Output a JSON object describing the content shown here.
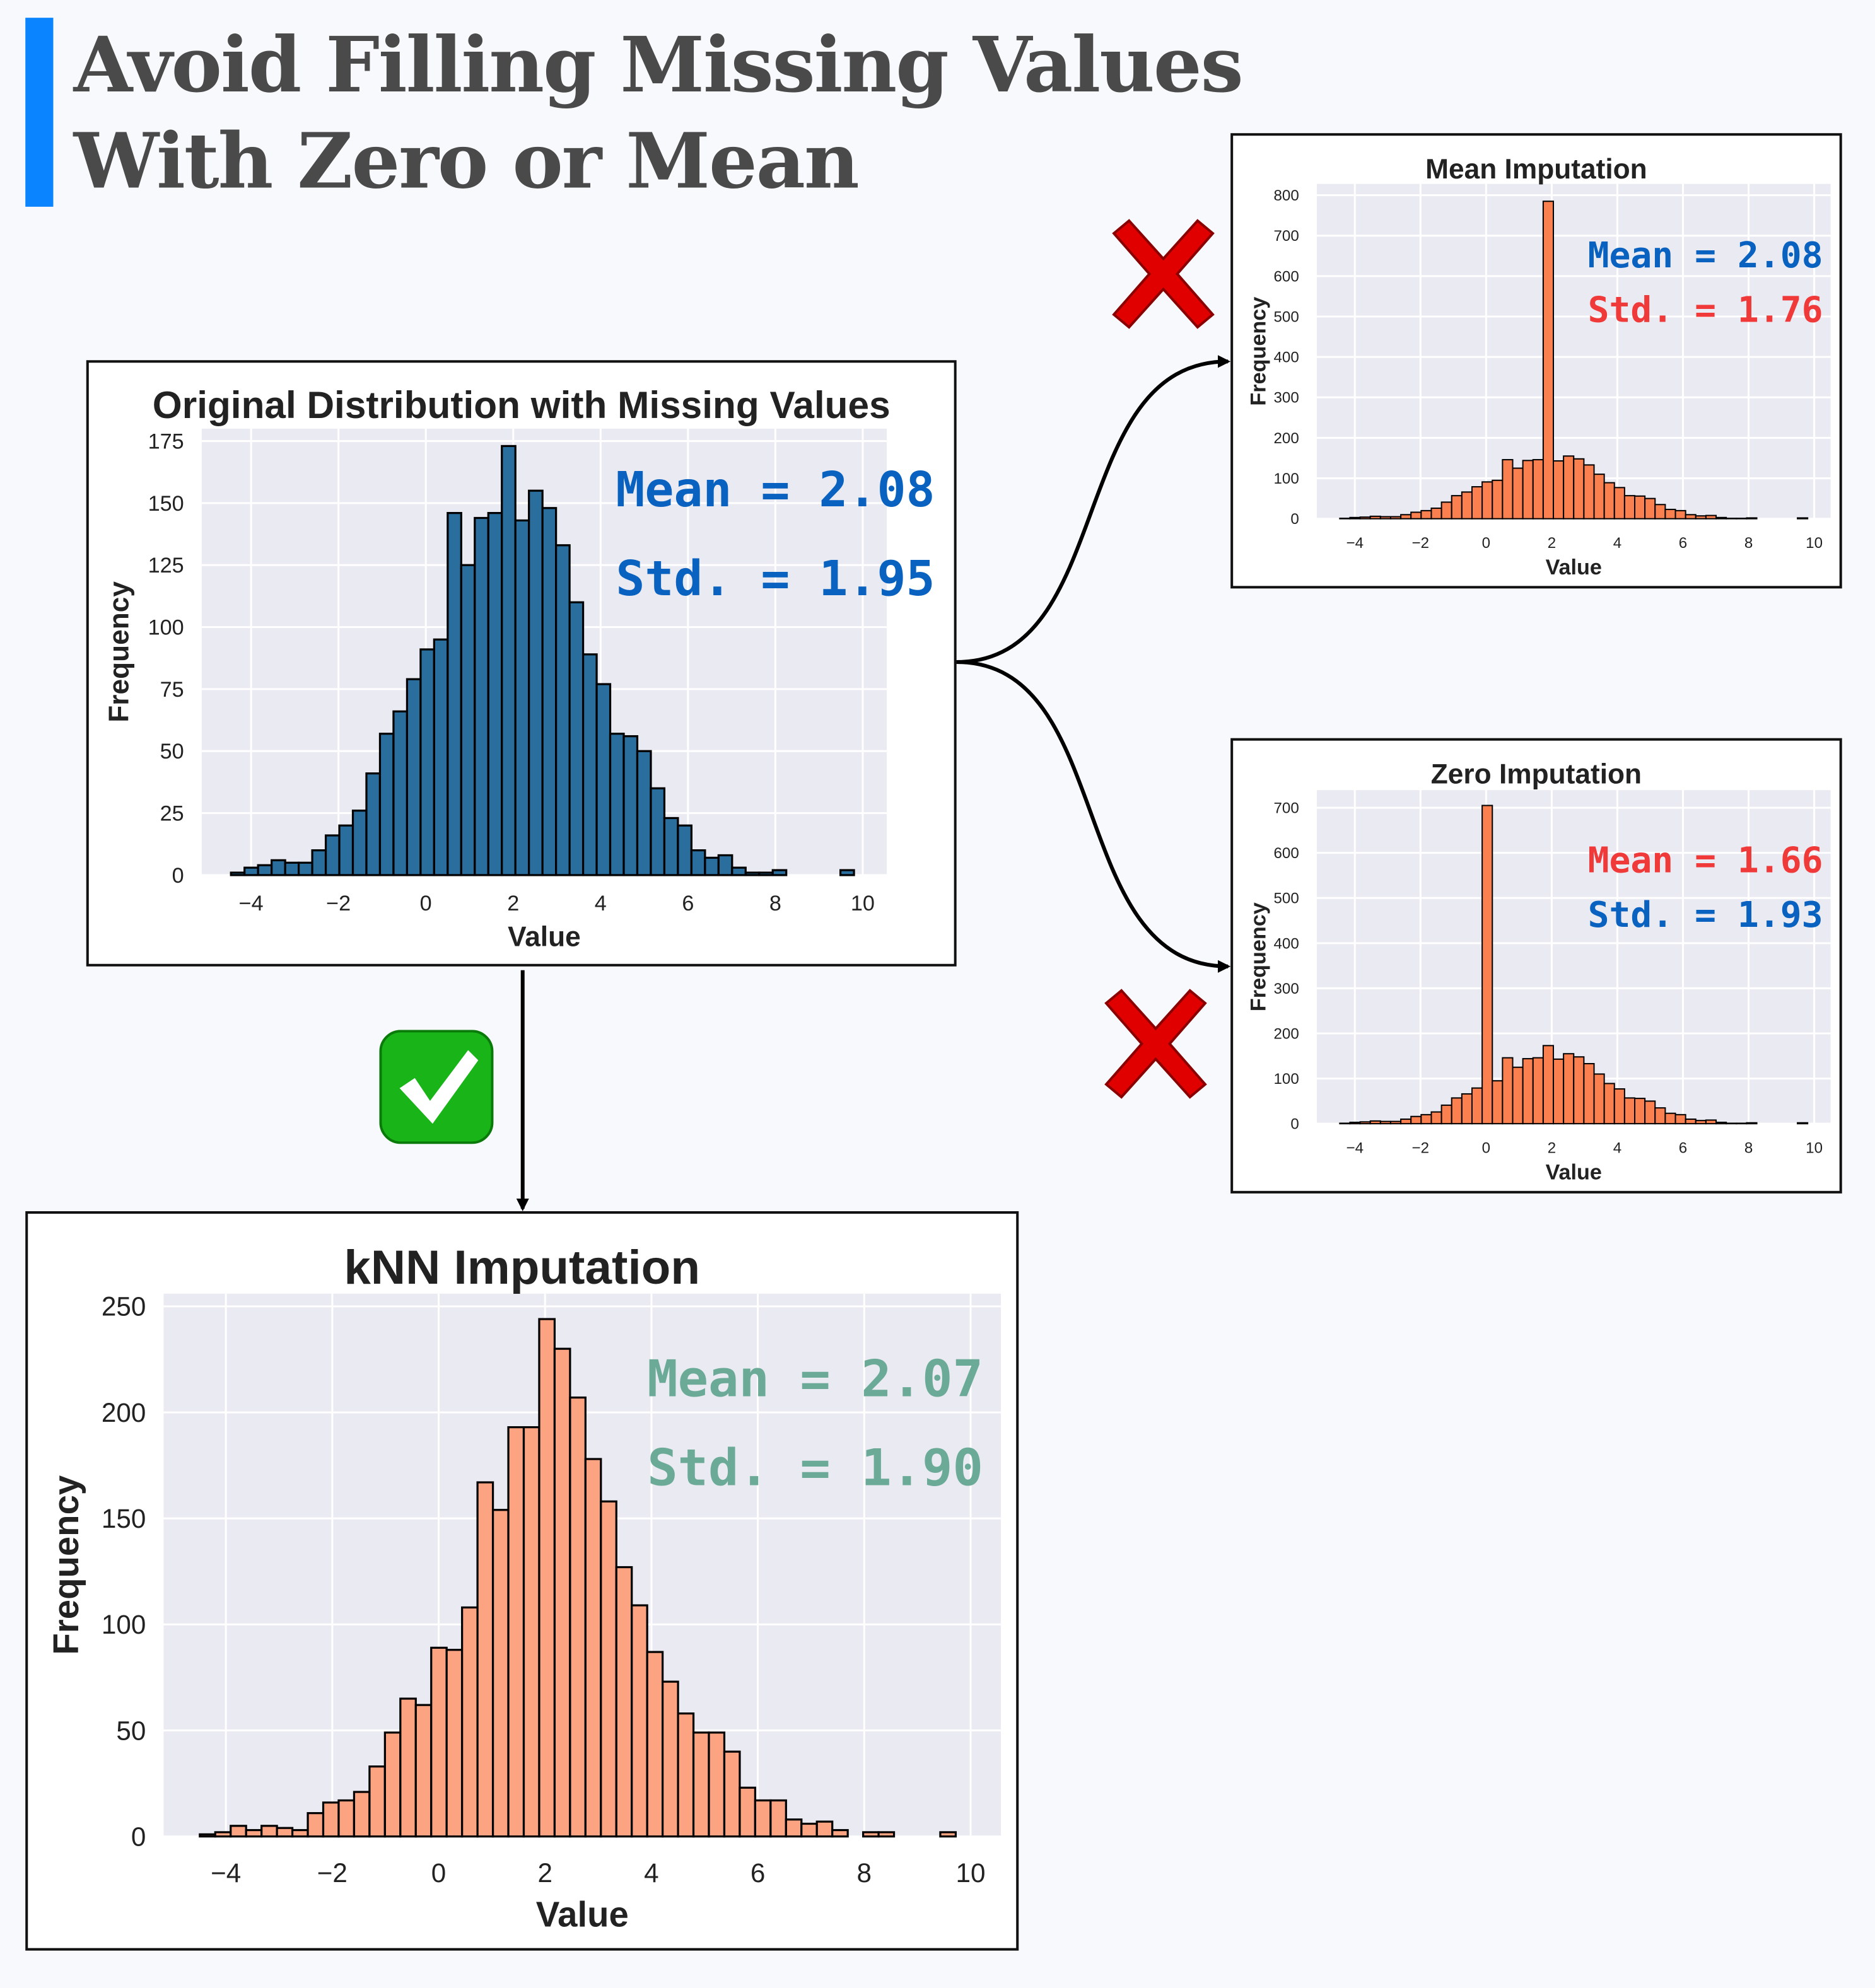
{
  "header": {
    "title_line1": "Avoid Filling Missing Values",
    "title_line2": "With Zero or Mean",
    "accent_color": "#0a84ff"
  },
  "icons": {
    "reject_icon": "red-cross-mark",
    "approve_icon": "green-check-mark"
  },
  "chart_data": [
    {
      "id": "original",
      "type": "bar",
      "title": "Original Distribution with Missing Values",
      "xlabel": "Value",
      "ylabel": "Frequency",
      "bin_start": -4.46,
      "bin_width": 0.31,
      "values": [
        1,
        3,
        4,
        6,
        5,
        5,
        10,
        16,
        20,
        26,
        41,
        57,
        66,
        79,
        91,
        95,
        146,
        125,
        144,
        146,
        173,
        143,
        155,
        148,
        133,
        110,
        89,
        77,
        57,
        56,
        50,
        35,
        23,
        20,
        10,
        7,
        8,
        3,
        1,
        1,
        2,
        0,
        0,
        0,
        0,
        2
      ],
      "xlim": [
        -5.13,
        10.55
      ],
      "ylim": [
        0,
        180
      ],
      "xticks": [
        -4,
        -2,
        0,
        2,
        4,
        6,
        8,
        10
      ],
      "yticks": [
        0,
        25,
        50,
        75,
        100,
        125,
        150,
        175
      ],
      "grid": true,
      "bar_color": "#2a6e9e",
      "annotations": [
        {
          "text": "Mean = 2.08",
          "color": "#0a62c0"
        },
        {
          "text": "Std. = 1.95",
          "color": "#0a62c0"
        }
      ]
    },
    {
      "id": "mean",
      "type": "bar",
      "title": "Mean Imputation",
      "xlabel": "Value",
      "ylabel": "Frequency",
      "bin_start": -4.46,
      "bin_width": 0.31,
      "values": [
        1,
        3,
        4,
        6,
        5,
        5,
        10,
        16,
        20,
        26,
        41,
        57,
        66,
        79,
        91,
        95,
        146,
        125,
        144,
        146,
        785,
        143,
        155,
        148,
        133,
        110,
        89,
        77,
        57,
        56,
        50,
        35,
        23,
        20,
        10,
        7,
        8,
        3,
        1,
        1,
        2,
        0,
        0,
        0,
        0,
        2
      ],
      "xlim": [
        -5.16,
        10.5
      ],
      "ylim": [
        0,
        828
      ],
      "xticks": [
        -4,
        -2,
        0,
        2,
        4,
        6,
        8,
        10
      ],
      "yticks": [
        0,
        100,
        200,
        300,
        400,
        500,
        600,
        700,
        800
      ],
      "grid": true,
      "bar_color": "#fb8050",
      "annotations": [
        {
          "text": "Mean = 2.08",
          "color": "#0a62c0"
        },
        {
          "text": "Std. = 1.76",
          "color": "#f03a3a"
        }
      ]
    },
    {
      "id": "zero",
      "type": "bar",
      "title": "Zero Imputation",
      "xlabel": "Value",
      "ylabel": "Frequency",
      "bin_start": -4.46,
      "bin_width": 0.31,
      "values": [
        1,
        3,
        4,
        6,
        5,
        5,
        10,
        16,
        20,
        26,
        41,
        57,
        66,
        79,
        705,
        95,
        146,
        125,
        144,
        146,
        173,
        143,
        155,
        148,
        133,
        110,
        89,
        77,
        57,
        56,
        50,
        35,
        23,
        20,
        10,
        7,
        8,
        3,
        1,
        1,
        2,
        0,
        0,
        0,
        0,
        2
      ],
      "xlim": [
        -5.16,
        10.5
      ],
      "ylim": [
        0,
        739
      ],
      "xticks": [
        -4,
        -2,
        0,
        2,
        4,
        6,
        8,
        10
      ],
      "yticks": [
        0,
        100,
        200,
        300,
        400,
        500,
        600,
        700
      ],
      "grid": true,
      "bar_color": "#fb8050",
      "annotations": [
        {
          "text": "Mean = 1.66",
          "color": "#f03a3a"
        },
        {
          "text": "Std. = 1.93",
          "color": "#0a62c0"
        }
      ]
    },
    {
      "id": "knn",
      "type": "bar",
      "title": "kNN Imputation",
      "xlabel": "Value",
      "ylabel": "Frequency",
      "bin_start": -4.49,
      "bin_width": 0.29,
      "values": [
        1,
        2,
        5,
        3,
        5,
        4,
        3,
        11,
        16,
        17,
        21,
        33,
        49,
        65,
        62,
        89,
        88,
        108,
        167,
        154,
        193,
        193,
        244,
        230,
        207,
        178,
        158,
        127,
        109,
        87,
        73,
        58,
        49,
        49,
        40,
        23,
        17,
        17,
        8,
        6,
        7,
        3,
        0,
        2,
        2,
        0,
        0,
        0,
        2
      ],
      "xlim": [
        -5.17,
        10.57
      ],
      "ylim": [
        0,
        256
      ],
      "xticks": [
        -4,
        -2,
        0,
        2,
        4,
        6,
        8,
        10
      ],
      "yticks": [
        0,
        50,
        100,
        150,
        200,
        250
      ],
      "grid": true,
      "bar_color": "#fca381",
      "annotations": [
        {
          "text": "Mean = 2.07",
          "color": "#6aaa96"
        },
        {
          "text": "Std. = 1.90",
          "color": "#6aaa96"
        }
      ]
    }
  ]
}
